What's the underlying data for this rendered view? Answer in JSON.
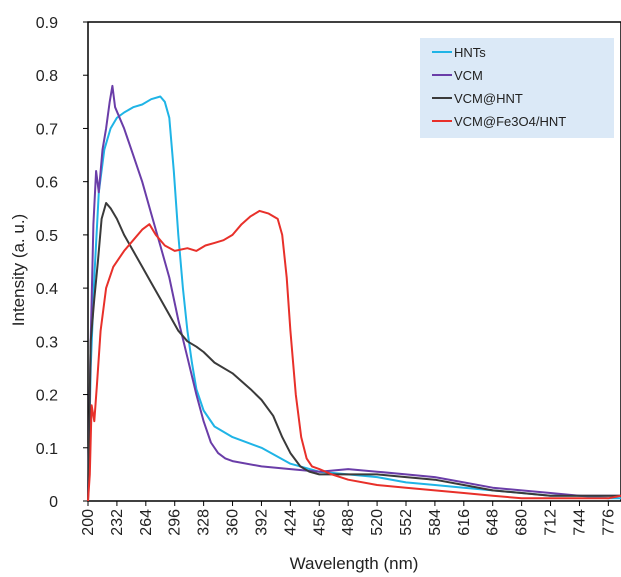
{
  "chart_data": {
    "type": "line",
    "title": "",
    "xlabel": "Wavelength (nm)",
    "ylabel": "Intensity (a. u.)",
    "xlim": [
      200,
      790
    ],
    "ylim": [
      0,
      0.9
    ],
    "x_ticks": [
      "200",
      "232",
      "264",
      "296",
      "328",
      "360",
      "392",
      "424",
      "456",
      "488",
      "520",
      "552",
      "584",
      "616",
      "648",
      "680",
      "712",
      "744",
      "776"
    ],
    "y_ticks": [
      "0",
      "0.1",
      "0.2",
      "0.3",
      "0.4",
      "0.5",
      "0.6",
      "0.7",
      "0.8",
      "0.9"
    ],
    "grid": false,
    "legend_position": "top-right",
    "series": [
      {
        "name": "HNTs",
        "color": "#1fb4e6",
        "points": [
          [
            200,
            0
          ],
          [
            203,
            0.25
          ],
          [
            207,
            0.42
          ],
          [
            212,
            0.58
          ],
          [
            218,
            0.66
          ],
          [
            225,
            0.7
          ],
          [
            232,
            0.72
          ],
          [
            240,
            0.73
          ],
          [
            250,
            0.74
          ],
          [
            260,
            0.745
          ],
          [
            270,
            0.755
          ],
          [
            280,
            0.76
          ],
          [
            285,
            0.75
          ],
          [
            290,
            0.72
          ],
          [
            295,
            0.62
          ],
          [
            300,
            0.5
          ],
          [
            305,
            0.4
          ],
          [
            310,
            0.32
          ],
          [
            315,
            0.26
          ],
          [
            320,
            0.21
          ],
          [
            328,
            0.17
          ],
          [
            340,
            0.14
          ],
          [
            360,
            0.12
          ],
          [
            392,
            0.1
          ],
          [
            424,
            0.07
          ],
          [
            456,
            0.055
          ],
          [
            488,
            0.05
          ],
          [
            520,
            0.045
          ],
          [
            552,
            0.035
          ],
          [
            584,
            0.03
          ],
          [
            616,
            0.025
          ],
          [
            648,
            0.02
          ],
          [
            680,
            0.015
          ],
          [
            712,
            0.01
          ],
          [
            744,
            0.01
          ],
          [
            776,
            0.005
          ],
          [
            790,
            0.005
          ]
        ]
      },
      {
        "name": "VCM",
        "color": "#6a3da8",
        "points": [
          [
            200,
            0
          ],
          [
            203,
            0.3
          ],
          [
            206,
            0.52
          ],
          [
            209,
            0.62
          ],
          [
            212,
            0.58
          ],
          [
            216,
            0.66
          ],
          [
            220,
            0.7
          ],
          [
            224,
            0.75
          ],
          [
            227,
            0.78
          ],
          [
            230,
            0.74
          ],
          [
            235,
            0.72
          ],
          [
            240,
            0.7
          ],
          [
            250,
            0.65
          ],
          [
            260,
            0.6
          ],
          [
            270,
            0.54
          ],
          [
            280,
            0.48
          ],
          [
            290,
            0.42
          ],
          [
            300,
            0.34
          ],
          [
            310,
            0.27
          ],
          [
            320,
            0.2
          ],
          [
            328,
            0.15
          ],
          [
            336,
            0.11
          ],
          [
            344,
            0.09
          ],
          [
            352,
            0.08
          ],
          [
            360,
            0.075
          ],
          [
            392,
            0.065
          ],
          [
            424,
            0.06
          ],
          [
            456,
            0.055
          ],
          [
            488,
            0.06
          ],
          [
            520,
            0.055
          ],
          [
            552,
            0.05
          ],
          [
            584,
            0.045
          ],
          [
            616,
            0.035
          ],
          [
            648,
            0.025
          ],
          [
            680,
            0.02
          ],
          [
            712,
            0.015
          ],
          [
            744,
            0.01
          ],
          [
            776,
            0.01
          ],
          [
            790,
            0.01
          ]
        ]
      },
      {
        "name": "VCM@HNT",
        "color": "#3a3a3a",
        "points": [
          [
            200,
            0
          ],
          [
            203,
            0.3
          ],
          [
            207,
            0.38
          ],
          [
            211,
            0.45
          ],
          [
            215,
            0.53
          ],
          [
            220,
            0.56
          ],
          [
            225,
            0.55
          ],
          [
            232,
            0.53
          ],
          [
            240,
            0.5
          ],
          [
            250,
            0.47
          ],
          [
            260,
            0.44
          ],
          [
            270,
            0.41
          ],
          [
            280,
            0.38
          ],
          [
            290,
            0.35
          ],
          [
            300,
            0.32
          ],
          [
            310,
            0.3
          ],
          [
            320,
            0.29
          ],
          [
            328,
            0.28
          ],
          [
            340,
            0.26
          ],
          [
            360,
            0.24
          ],
          [
            380,
            0.21
          ],
          [
            392,
            0.19
          ],
          [
            405,
            0.16
          ],
          [
            415,
            0.12
          ],
          [
            424,
            0.09
          ],
          [
            435,
            0.065
          ],
          [
            445,
            0.055
          ],
          [
            456,
            0.05
          ],
          [
            488,
            0.05
          ],
          [
            520,
            0.05
          ],
          [
            552,
            0.045
          ],
          [
            584,
            0.04
          ],
          [
            616,
            0.03
          ],
          [
            648,
            0.02
          ],
          [
            680,
            0.015
          ],
          [
            712,
            0.01
          ],
          [
            744,
            0.01
          ],
          [
            776,
            0.01
          ],
          [
            790,
            0.01
          ]
        ]
      },
      {
        "name": "VCM@Fe3O4/HNT",
        "color": "#e8302a",
        "points": [
          [
            200,
            0
          ],
          [
            202,
            0.05
          ],
          [
            204,
            0.18
          ],
          [
            207,
            0.15
          ],
          [
            210,
            0.22
          ],
          [
            214,
            0.32
          ],
          [
            220,
            0.4
          ],
          [
            228,
            0.44
          ],
          [
            240,
            0.47
          ],
          [
            250,
            0.49
          ],
          [
            260,
            0.51
          ],
          [
            268,
            0.52
          ],
          [
            275,
            0.5
          ],
          [
            285,
            0.48
          ],
          [
            296,
            0.47
          ],
          [
            310,
            0.475
          ],
          [
            320,
            0.47
          ],
          [
            330,
            0.48
          ],
          [
            340,
            0.485
          ],
          [
            350,
            0.49
          ],
          [
            360,
            0.5
          ],
          [
            370,
            0.52
          ],
          [
            380,
            0.535
          ],
          [
            390,
            0.545
          ],
          [
            400,
            0.54
          ],
          [
            410,
            0.53
          ],
          [
            415,
            0.5
          ],
          [
            420,
            0.42
          ],
          [
            424,
            0.32
          ],
          [
            430,
            0.2
          ],
          [
            436,
            0.12
          ],
          [
            442,
            0.08
          ],
          [
            448,
            0.065
          ],
          [
            456,
            0.06
          ],
          [
            470,
            0.05
          ],
          [
            488,
            0.04
          ],
          [
            520,
            0.03
          ],
          [
            552,
            0.025
          ],
          [
            584,
            0.02
          ],
          [
            616,
            0.015
          ],
          [
            648,
            0.01
          ],
          [
            680,
            0.005
          ],
          [
            712,
            0.005
          ],
          [
            744,
            0.005
          ],
          [
            776,
            0.005
          ],
          [
            790,
            0.01
          ]
        ]
      }
    ]
  }
}
